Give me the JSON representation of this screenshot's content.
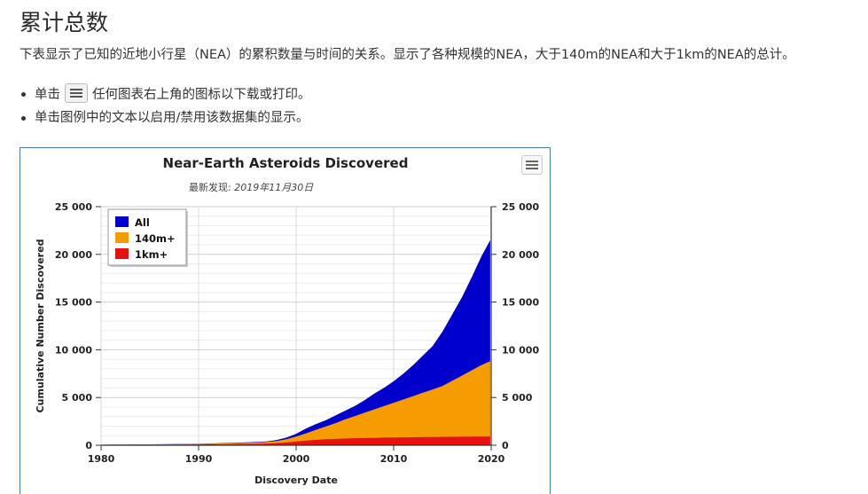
{
  "page": {
    "title": "累计总数",
    "intro": "下表显示了已知的近地小行星（NEA）的累积数量与时间的关系。显示了各种规模的NEA，大于140m的NEA和大于1km的NEA的总计。",
    "bullets": [
      {
        "before": "单击",
        "after": "任何图表右上角的图标以下载或打印。",
        "icon": "hamburger-menu-icon"
      },
      {
        "text": "单击图例中的文本以启用/禁用该数据集的显示。"
      }
    ]
  },
  "chart_data": {
    "type": "area",
    "title": "Near-Earth Asteroids Discovered",
    "subtitle": "最新发现: 2019年11月30日",
    "subtitle_prefix": "最新发现:",
    "subtitle_date": "2019年11月30日",
    "xlabel": "Discovery Date",
    "ylabel": "Cumulative Number Discovered",
    "xlim": [
      1980,
      2020
    ],
    "ylim": [
      0,
      25000
    ],
    "x_ticks": [
      "1980",
      "1990",
      "2000",
      "2010",
      "2020"
    ],
    "y_ticks": [
      "0",
      "5 000",
      "10 000",
      "15 000",
      "20 000",
      "25 000"
    ],
    "legend_position": "top-left",
    "menu_icon": "hamburger-menu-icon",
    "x": [
      1980,
      1985,
      1990,
      1995,
      1997,
      1998,
      1999,
      2000,
      2001,
      2002,
      2003,
      2004,
      2005,
      2006,
      2007,
      2008,
      2009,
      2010,
      2011,
      2012,
      2013,
      2014,
      2015,
      2016,
      2017,
      2018,
      2019,
      2019.9
    ],
    "series": [
      {
        "name": "All",
        "color": "#0000cc",
        "values": [
          50,
          90,
          150,
          300,
          400,
          550,
          800,
          1200,
          1750,
          2200,
          2600,
          3100,
          3600,
          4100,
          4700,
          5400,
          6000,
          6700,
          7500,
          8400,
          9400,
          10400,
          11900,
          13700,
          15500,
          17600,
          19800,
          21500
        ]
      },
      {
        "name": "140m+",
        "color": "#f59c00",
        "values": [
          50,
          80,
          130,
          250,
          330,
          440,
          620,
          900,
          1250,
          1600,
          1950,
          2300,
          2700,
          3050,
          3400,
          3750,
          4100,
          4450,
          4800,
          5150,
          5500,
          5850,
          6200,
          6750,
          7300,
          7850,
          8400,
          8800
        ]
      },
      {
        "name": "1km+",
        "color": "#e81010",
        "values": [
          30,
          50,
          80,
          130,
          170,
          220,
          290,
          380,
          480,
          560,
          620,
          660,
          700,
          730,
          755,
          775,
          795,
          810,
          825,
          840,
          852,
          864,
          876,
          886,
          895,
          903,
          910,
          915
        ]
      }
    ]
  }
}
